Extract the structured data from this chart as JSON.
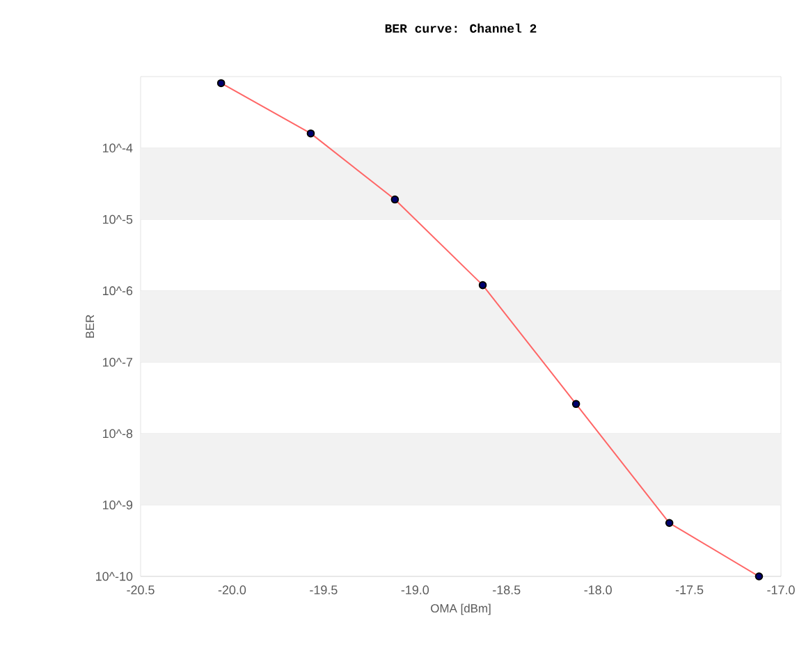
{
  "chart_data": {
    "type": "line",
    "title": "BER curve: Channel 2",
    "xlabel": "OMA [dBm]",
    "ylabel": "BER",
    "x": [
      -20.06,
      -19.57,
      -19.11,
      -18.63,
      -18.12,
      -17.61,
      -17.12
    ],
    "series": [
      {
        "color": "#ff6666",
        "values": [
          0.00081,
          0.00016,
          1.9e-05,
          1.2e-06,
          2.6e-08,
          5.6e-10,
          1e-10
        ]
      }
    ],
    "log": "y",
    "xlim": [
      -20.5,
      -17.0
    ],
    "ylim": [
      1e-10,
      0.001
    ],
    "xticks": [
      -20.5,
      {
        "value": -20.0,
        "label": "-20.0"
      },
      -19.5,
      {
        "value": -19.0,
        "label": "-19.0"
      },
      -18.5,
      {
        "value": -18.0,
        "label": "-18.0"
      },
      -17.5,
      {
        "value": -17.0,
        "label": "-17.0"
      }
    ],
    "yticks": [
      {
        "value": 1e-10,
        "label": "10^-10"
      },
      {
        "value": 1e-09,
        "label": "10^-9"
      },
      {
        "value": 1e-08,
        "label": "10^-8"
      },
      {
        "value": 1e-07,
        "label": "10^-7"
      },
      {
        "value": 1e-06,
        "label": "10^-6"
      },
      {
        "value": 1e-05,
        "label": "10^-5"
      },
      {
        "value": 0.0001,
        "label": "10^-4"
      }
    ],
    "grid": "y",
    "marker": "circle",
    "line_style": "solid"
  }
}
